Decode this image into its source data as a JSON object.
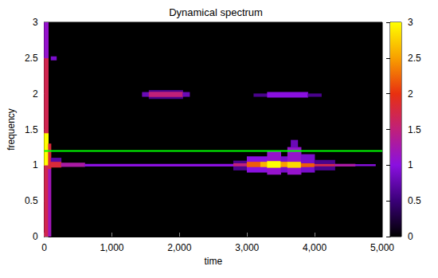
{
  "chart_data": {
    "type": "heatmap",
    "title": "Dynamical spectrum",
    "x_label": "time",
    "y_label": "frequency",
    "xlim": [
      0,
      5000
    ],
    "xticks": [
      0,
      1000,
      2000,
      3000,
      4000,
      5000
    ],
    "ylim": [
      0,
      3
    ],
    "yticks": [
      0,
      0.5,
      1,
      1.5,
      2,
      2.5,
      3
    ],
    "cells": [
      [
        0,
        60,
        0,
        1.0,
        1.7
      ],
      [
        0,
        60,
        1.0,
        1.45,
        3
      ],
      [
        0,
        60,
        1.45,
        2.5,
        1.7
      ],
      [
        0,
        60,
        2.5,
        3,
        1.1
      ],
      [
        60,
        100,
        0,
        0.95,
        1.2
      ],
      [
        60,
        100,
        0.95,
        1.3,
        1.8
      ],
      [
        100,
        180,
        2.47,
        2.52,
        0.9
      ],
      [
        100,
        250,
        0.97,
        1.05,
        1.8
      ],
      [
        100,
        250,
        1.05,
        1.1,
        0.7
      ],
      [
        250,
        600,
        0.98,
        1.03,
        1.3
      ],
      [
        600,
        2800,
        0.985,
        1.015,
        1.0
      ],
      [
        1450,
        1550,
        1.96,
        2.02,
        0.8
      ],
      [
        1550,
        2050,
        1.95,
        2.03,
        1.5
      ],
      [
        1550,
        2050,
        1.93,
        1.95,
        0.6
      ],
      [
        1550,
        2050,
        2.03,
        2.05,
        0.6
      ],
      [
        2050,
        2150,
        1.96,
        2.02,
        0.8
      ],
      [
        3100,
        3300,
        1.96,
        2.0,
        0.6
      ],
      [
        3300,
        3900,
        1.95,
        2.02,
        1.0
      ],
      [
        3900,
        4100,
        1.96,
        2.0,
        0.6
      ],
      [
        2800,
        3000,
        0.98,
        1.03,
        1.5
      ],
      [
        2800,
        3000,
        0.93,
        0.98,
        0.6
      ],
      [
        2800,
        3000,
        1.03,
        1.06,
        0.6
      ],
      [
        3000,
        3200,
        0.97,
        1.05,
        2.2
      ],
      [
        3200,
        3300,
        0.97,
        1.05,
        2.6
      ],
      [
        3000,
        3300,
        0.9,
        0.97,
        1.0
      ],
      [
        3000,
        3300,
        1.05,
        1.12,
        1.0
      ],
      [
        3300,
        3500,
        0.96,
        1.06,
        3
      ],
      [
        3300,
        3500,
        0.87,
        0.96,
        1.1
      ],
      [
        3300,
        3500,
        1.06,
        1.2,
        1.1
      ],
      [
        3500,
        3600,
        0.97,
        1.05,
        2.5
      ],
      [
        3500,
        3600,
        0.9,
        0.97,
        0.9
      ],
      [
        3500,
        3600,
        1.05,
        1.12,
        0.9
      ],
      [
        3600,
        3800,
        0.96,
        1.05,
        2.8
      ],
      [
        3600,
        3800,
        0.87,
        0.96,
        1.1
      ],
      [
        3600,
        3800,
        1.05,
        1.25,
        1.1
      ],
      [
        3650,
        3750,
        1.25,
        1.35,
        0.8
      ],
      [
        3800,
        4000,
        0.97,
        1.03,
        2.2
      ],
      [
        3800,
        4000,
        0.9,
        0.97,
        0.9
      ],
      [
        3800,
        4000,
        1.03,
        1.15,
        0.9
      ],
      [
        4000,
        4300,
        0.98,
        1.02,
        1.7
      ],
      [
        4000,
        4300,
        0.93,
        0.98,
        0.6
      ],
      [
        4000,
        4300,
        1.02,
        1.07,
        0.6
      ],
      [
        4300,
        4600,
        0.985,
        1.015,
        1.3
      ],
      [
        4600,
        4900,
        0.99,
        1.01,
        1.0
      ]
    ],
    "colorbar": {
      "range": [
        0,
        3
      ],
      "ticks": [
        0,
        0.5,
        1,
        1.5,
        2,
        2.5,
        3
      ]
    },
    "reference_line": {
      "y": 1.2,
      "color": "#00ff00"
    }
  }
}
